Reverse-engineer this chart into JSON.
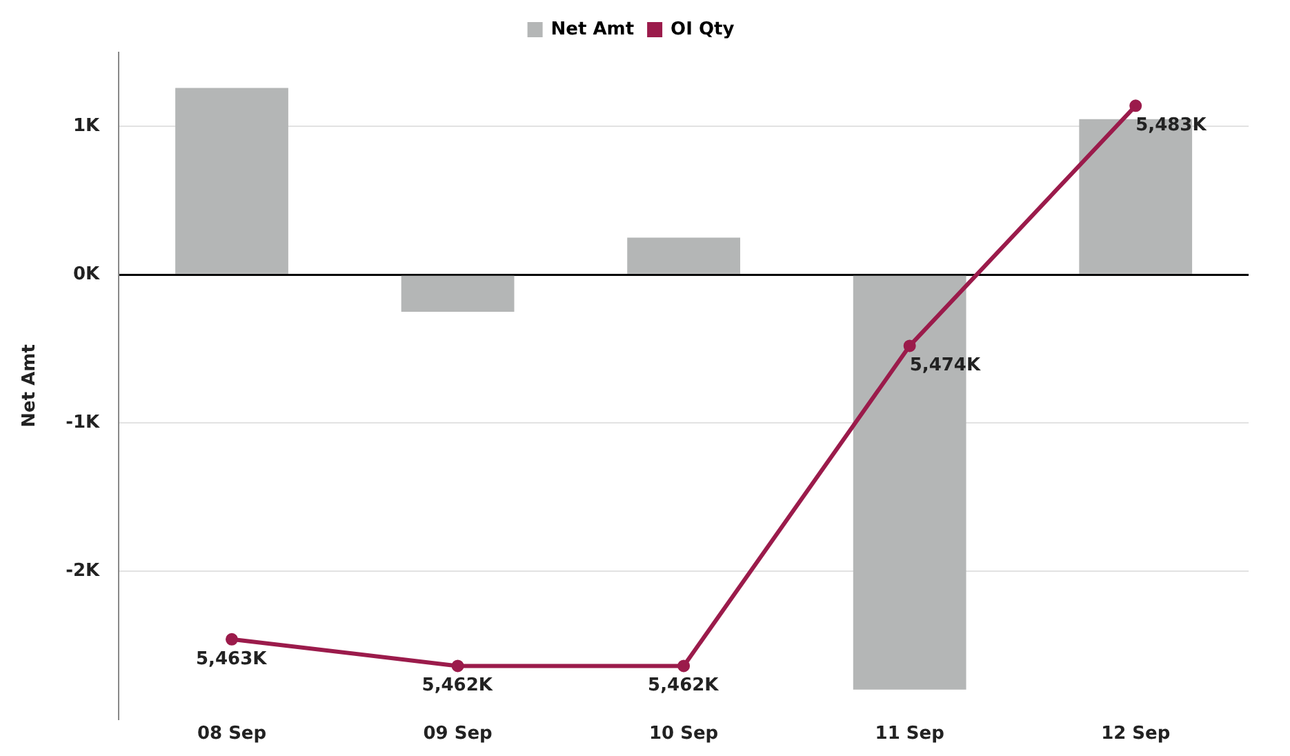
{
  "chart_data": {
    "type": "bar",
    "ylabel": "Net Amt",
    "categories": [
      "08 Sep",
      "09 Sep",
      "10 Sep",
      "11 Sep",
      "12 Sep"
    ],
    "series": [
      {
        "name": "Net Amt",
        "color": "#b4b6b6",
        "values": [
          1.26,
          -0.25,
          0.25,
          -2.8,
          1.05
        ]
      },
      {
        "name": "OI Qty",
        "type": "line",
        "axis": "y2",
        "color": "#9b1b4b",
        "marker": "circle",
        "values": [
          5463,
          5462,
          5462,
          5474,
          5483
        ],
        "value_labels": [
          "5,463K",
          "5,462K",
          "5,462K",
          "5,474K",
          "5,483K"
        ]
      }
    ],
    "ylim": [
      -3,
      1.5
    ],
    "yticks": [
      {
        "value": -2,
        "label": "-2K"
      },
      {
        "value": -1,
        "label": "-1K"
      },
      {
        "value": 0,
        "label": "0K"
      },
      {
        "value": 1,
        "label": "1K"
      }
    ],
    "grid": "y",
    "legend": "top"
  }
}
